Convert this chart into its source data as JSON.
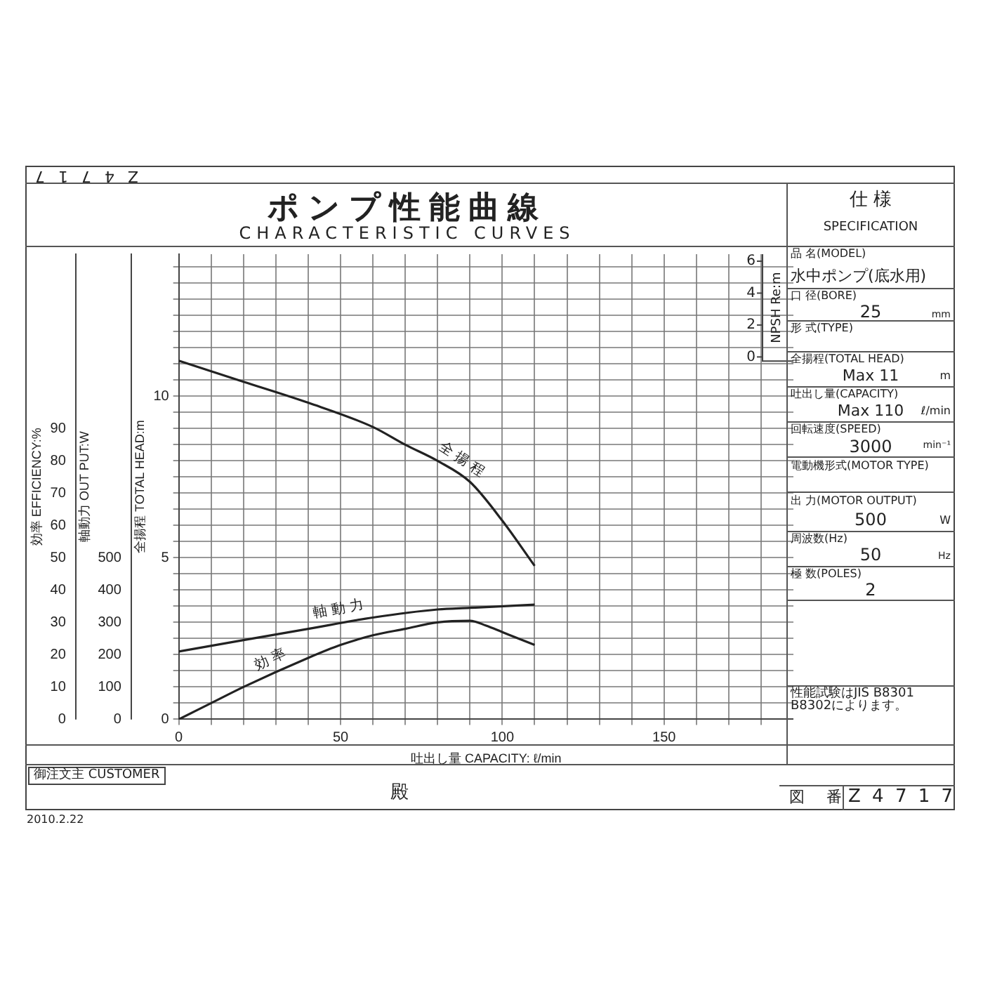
{
  "chart_data": {
    "type": "line",
    "title": "ポンプ性能曲線",
    "subtitle": "CHARACTERISTIC CURVES",
    "xlabel": "吐出し量 CAPACITY: ℓ/min",
    "ylabel": "全揚程 TOTAL HEAD:m",
    "y2label": "効率 EFFICIENCY:%",
    "y3label": "軸動力 OUT PUT:W",
    "xlim": [
      0,
      190
    ],
    "xticks": [
      0,
      {
        "value": 10,
        "label": null
      },
      {
        "value": 20,
        "label": null
      },
      {
        "value": 30,
        "label": null
      },
      {
        "value": 40,
        "label": null
      },
      50,
      {
        "value": 60,
        "label": null
      },
      {
        "value": 70,
        "label": null
      },
      {
        "value": 80,
        "label": null
      },
      {
        "value": 90,
        "label": null
      },
      100,
      {
        "value": 110,
        "label": null
      },
      {
        "value": 120,
        "label": null
      },
      {
        "value": 130,
        "label": null
      },
      {
        "value": 140,
        "label": null
      },
      150,
      {
        "value": 160,
        "label": null
      },
      {
        "value": 170,
        "label": null
      },
      {
        "value": 180,
        "label": null
      }
    ],
    "ylim": [
      0,
      14.4
    ],
    "yticks": [
      0,
      {
        "value": 0.5,
        "label": null
      },
      {
        "value": 1,
        "label": null
      },
      {
        "value": 1.5,
        "label": null
      },
      {
        "value": 2,
        "label": null
      },
      {
        "value": 2.5,
        "label": null
      },
      {
        "value": 3,
        "label": null
      },
      {
        "value": 3.5,
        "label": null
      },
      {
        "value": 4,
        "label": null
      },
      {
        "value": 4.5,
        "label": null
      },
      5,
      {
        "value": 5.5,
        "label": null
      },
      {
        "value": 6,
        "label": null
      },
      {
        "value": 6.5,
        "label": null
      },
      {
        "value": 7,
        "label": null
      },
      {
        "value": 7.5,
        "label": null
      },
      {
        "value": 8,
        "label": null
      },
      {
        "value": 8.5,
        "label": null
      },
      {
        "value": 9,
        "label": null
      },
      {
        "value": 9.5,
        "label": null
      },
      10,
      {
        "value": 10.5,
        "label": null
      },
      {
        "value": 11,
        "label": null
      },
      {
        "value": 11.5,
        "label": null
      },
      {
        "value": 12,
        "label": null
      },
      {
        "value": 12.5,
        "label": null
      },
      {
        "value": 13,
        "label": null
      },
      {
        "value": 13.5,
        "label": null
      },
      {
        "value": 14,
        "label": null
      }
    ],
    "y2lim": [
      0,
      144
    ],
    "y2ticks": [
      0,
      10,
      20,
      30,
      40,
      50,
      60,
      70,
      80,
      90
    ],
    "y3lim": [
      0,
      1440
    ],
    "y3ticks": [
      0,
      100,
      200,
      300,
      400,
      500
    ],
    "grid": true,
    "series": [
      {
        "name": "全揚程",
        "color": "#222222",
        "x": [
          0,
          20,
          40,
          60,
          70,
          80,
          90,
          100,
          110
        ],
        "values": [
          11.1,
          10.45,
          9.8,
          9.05,
          8.5,
          8.0,
          7.35,
          6.15,
          4.75
        ]
      },
      {
        "name": "軸動力",
        "color": "#222222",
        "axis": "y3",
        "x": [
          0,
          20,
          40,
          60,
          80,
          90,
          110
        ],
        "values": [
          210,
          245,
          280,
          315,
          340,
          345,
          355
        ]
      },
      {
        "name": "効率",
        "color": "#222222",
        "axis": "y2",
        "x": [
          0,
          10,
          20,
          40,
          50,
          60,
          70,
          80,
          90,
          95,
          100,
          110
        ],
        "values": [
          0,
          5,
          10,
          19,
          23,
          26,
          28,
          30,
          30.5,
          29,
          27,
          23
        ]
      }
    ],
    "annotations": [
      "Z 4 7 1 7",
      "仕 様",
      "SPECIFICATION",
      "品 名(MODEL)",
      "水中ポンプ(底水用)",
      "口 径(BORE)",
      "25",
      "mm",
      "形 式(TYPE)",
      "全揚程(TOTAL HEAD)",
      "Max 11",
      "m",
      "吐出し量(CAPACITY)",
      "Max 110",
      "ℓ/min",
      "回転速度(SPEED)",
      "3000",
      "min⁻¹",
      "電動機形式(MOTOR TYPE)",
      "出 力(MOTOR OUTPUT)",
      "500",
      "W",
      "周波数(Hz)",
      "50",
      "Hz",
      "極 数(POLES)",
      "2",
      "性能試験はJIS B8301 B8302によります。",
      "御注文主 CUSTOMER",
      "殿",
      "図 番",
      "Z 4 7 1 7",
      "2010.2.22",
      "NPSH Re:m",
      "0",
      "2",
      "4",
      "6"
    ]
  }
}
